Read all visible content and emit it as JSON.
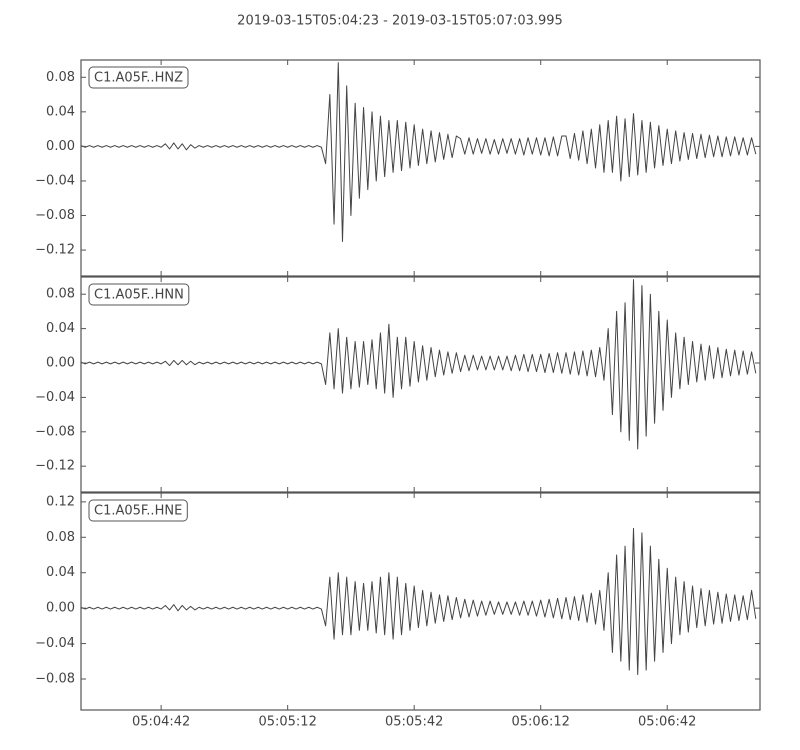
{
  "title": "2019-03-15T05:04:23  -  2019-03-15T05:07:03.995",
  "chart_data": [
    {
      "type": "line",
      "xlim": [
        0,
        160.995
      ],
      "ylim": [
        -0.15,
        0.1
      ],
      "yticks": [
        {
          "value": -0.12,
          "label": "−0.12"
        },
        {
          "value": -0.08,
          "label": "−0.08"
        },
        {
          "value": -0.04,
          "label": "−0.04"
        },
        {
          "value": 0,
          "label": "0.00"
        },
        0.04,
        0.08
      ],
      "x": [
        0,
        1,
        2,
        3,
        4,
        5,
        6,
        7,
        8,
        9,
        10,
        11,
        12,
        13,
        14,
        15,
        16,
        17,
        18,
        19,
        20,
        21,
        22,
        23,
        24,
        25,
        26,
        27,
        28,
        29,
        30,
        31,
        32,
        33,
        34,
        35,
        36,
        37,
        38,
        39,
        40,
        41,
        42,
        43,
        44,
        45,
        46,
        47,
        48,
        49,
        50,
        51,
        52,
        53,
        54,
        55,
        56,
        57,
        58,
        59,
        60,
        61,
        62,
        63,
        64,
        65,
        66,
        67,
        68,
        69,
        70,
        71,
        72,
        73,
        74,
        75,
        76,
        77,
        78,
        79,
        80,
        81,
        82,
        83,
        84,
        85,
        86,
        87,
        88,
        89,
        90,
        91,
        92,
        93,
        94,
        95,
        96,
        97,
        98,
        99,
        100,
        101,
        102,
        103,
        104,
        105,
        106,
        107,
        108,
        109,
        110,
        111,
        112,
        113,
        114,
        115,
        116,
        117,
        118,
        119,
        120,
        121,
        122,
        123,
        124,
        125,
        126,
        127,
        128,
        129,
        130,
        131,
        132,
        133,
        134,
        135,
        136,
        137,
        138,
        139,
        140,
        141,
        142,
        143,
        144,
        145,
        146,
        147,
        148,
        149,
        150,
        151,
        152,
        153,
        154,
        155,
        156,
        157,
        158,
        159,
        160
      ],
      "series": [
        {
          "name": "C1.A05F..HNZ",
          "color": "#444444",
          "values": [
            0.001,
            -0.001,
            0.001,
            -0.001,
            0.001,
            -0.001,
            0.001,
            -0.001,
            0.001,
            -0.001,
            0.001,
            -0.001,
            0.001,
            -0.001,
            0.001,
            -0.001,
            0.001,
            -0.001,
            0.001,
            -0.001,
            0.003,
            -0.003,
            0.004,
            -0.003,
            0.003,
            -0.004,
            0.002,
            -0.002,
            0.001,
            -0.001,
            0.001,
            -0.001,
            0.001,
            -0.001,
            0.001,
            -0.001,
            0.001,
            -0.001,
            0.001,
            -0.001,
            0.001,
            -0.001,
            0.001,
            -0.001,
            0.001,
            -0.001,
            0.001,
            -0.001,
            0.001,
            -0.001,
            0.001,
            -0.001,
            0.001,
            -0.001,
            0.001,
            -0.001,
            0.001,
            -0.001,
            -0.02,
            0.06,
            -0.09,
            0.097,
            -0.11,
            0.07,
            -0.08,
            0.05,
            -0.06,
            0.045,
            -0.05,
            0.04,
            -0.04,
            0.035,
            -0.035,
            0.03,
            -0.03,
            0.03,
            -0.028,
            0.028,
            -0.025,
            0.025,
            -0.022,
            0.02,
            -0.02,
            0.018,
            -0.018,
            0.016,
            -0.015,
            0.014,
            -0.013,
            0.012,
            0.009,
            -0.009,
            0.01,
            -0.009,
            0.009,
            -0.008,
            0.009,
            -0.009,
            0.008,
            -0.009,
            0.009,
            -0.008,
            0.009,
            -0.009,
            0.009,
            -0.01,
            0.01,
            -0.009,
            0.01,
            -0.01,
            0.01,
            -0.011,
            0.011,
            -0.011,
            0.012,
            0.012,
            -0.014,
            0.015,
            -0.016,
            0.018,
            -0.02,
            0.02,
            -0.025,
            0.025,
            -0.03,
            0.03,
            -0.03,
            0.035,
            -0.04,
            0.032,
            -0.035,
            0.038,
            -0.033,
            0.03,
            -0.03,
            0.028,
            -0.025,
            0.024,
            -0.022,
            0.02,
            -0.02,
            0.018,
            -0.017,
            0.016,
            -0.015,
            0.015,
            -0.014,
            0.014,
            -0.013,
            0.013,
            -0.012,
            0.012,
            -0.012,
            0.011,
            -0.011,
            0.011,
            -0.01,
            0.01,
            -0.01,
            0.01,
            -0.009
          ]
        }
      ]
    },
    {
      "type": "line",
      "xlim": [
        0,
        160.995
      ],
      "ylim": [
        -0.15,
        0.1
      ],
      "yticks": [
        {
          "value": -0.12,
          "label": "−0.12"
        },
        {
          "value": -0.08,
          "label": "−0.08"
        },
        {
          "value": -0.04,
          "label": "−0.04"
        },
        {
          "value": 0,
          "label": "0.00"
        },
        0.04,
        0.08
      ],
      "x": [
        0,
        1,
        2,
        3,
        4,
        5,
        6,
        7,
        8,
        9,
        10,
        11,
        12,
        13,
        14,
        15,
        16,
        17,
        18,
        19,
        20,
        21,
        22,
        23,
        24,
        25,
        26,
        27,
        28,
        29,
        30,
        31,
        32,
        33,
        34,
        35,
        36,
        37,
        38,
        39,
        40,
        41,
        42,
        43,
        44,
        45,
        46,
        47,
        48,
        49,
        50,
        51,
        52,
        53,
        54,
        55,
        56,
        57,
        58,
        59,
        60,
        61,
        62,
        63,
        64,
        65,
        66,
        67,
        68,
        69,
        70,
        71,
        72,
        73,
        74,
        75,
        76,
        77,
        78,
        79,
        80,
        81,
        82,
        83,
        84,
        85,
        86,
        87,
        88,
        89,
        90,
        91,
        92,
        93,
        94,
        95,
        96,
        97,
        98,
        99,
        100,
        101,
        102,
        103,
        104,
        105,
        106,
        107,
        108,
        109,
        110,
        111,
        112,
        113,
        114,
        115,
        116,
        117,
        118,
        119,
        120,
        121,
        122,
        123,
        124,
        125,
        126,
        127,
        128,
        129,
        130,
        131,
        132,
        133,
        134,
        135,
        136,
        137,
        138,
        139,
        140,
        141,
        142,
        143,
        144,
        145,
        146,
        147,
        148,
        149,
        150,
        151,
        152,
        153,
        154,
        155,
        156,
        157,
        158,
        159,
        160
      ],
      "series": [
        {
          "name": "C1.A05F..HNN",
          "color": "#444444",
          "values": [
            0.001,
            -0.001,
            0.001,
            -0.001,
            0.001,
            -0.001,
            0.001,
            -0.001,
            0.001,
            -0.001,
            0.001,
            -0.001,
            0.001,
            -0.001,
            0.001,
            -0.001,
            0.001,
            -0.001,
            0.001,
            -0.001,
            0.002,
            -0.003,
            0.003,
            -0.002,
            0.003,
            -0.002,
            0.002,
            -0.002,
            0.001,
            -0.001,
            0.001,
            -0.001,
            0.001,
            -0.001,
            0.001,
            -0.001,
            0.001,
            -0.001,
            0.001,
            -0.001,
            0.001,
            -0.001,
            0.001,
            -0.001,
            0.001,
            -0.001,
            0.001,
            -0.001,
            0.001,
            -0.001,
            0.001,
            -0.001,
            0.001,
            -0.001,
            0.001,
            -0.001,
            0.001,
            -0.001,
            -0.025,
            0.035,
            -0.03,
            0.04,
            -0.035,
            0.03,
            -0.03,
            0.025,
            -0.028,
            0.025,
            -0.025,
            0.027,
            -0.03,
            0.035,
            -0.035,
            0.045,
            -0.04,
            0.03,
            -0.03,
            0.03,
            -0.027,
            0.025,
            -0.022,
            0.02,
            -0.02,
            0.018,
            -0.016,
            0.015,
            -0.014,
            0.013,
            -0.012,
            0.012,
            -0.01,
            0.009,
            -0.009,
            0.009,
            -0.008,
            0.008,
            -0.008,
            0.008,
            -0.008,
            0.008,
            -0.008,
            0.008,
            -0.009,
            0.009,
            -0.009,
            0.01,
            -0.01,
            0.01,
            -0.01,
            0.01,
            -0.011,
            0.011,
            -0.011,
            0.012,
            -0.012,
            0.012,
            -0.013,
            0.013,
            -0.014,
            0.014,
            -0.015,
            0.015,
            -0.016,
            0.018,
            -0.02,
            0.04,
            -0.06,
            0.06,
            -0.08,
            0.07,
            -0.09,
            0.097,
            -0.1,
            0.09,
            -0.085,
            0.08,
            -0.07,
            0.06,
            -0.055,
            0.05,
            -0.04,
            0.035,
            -0.03,
            0.03,
            -0.025,
            0.025,
            -0.022,
            0.022,
            -0.02,
            0.02,
            -0.018,
            0.018,
            -0.017,
            0.016,
            -0.015,
            0.015,
            -0.014,
            0.014,
            -0.013,
            0.013,
            -0.012
          ]
        }
      ]
    },
    {
      "type": "line",
      "xlim": [
        0,
        160.995
      ],
      "ylim": [
        -0.115,
        0.13
      ],
      "yticks": [
        {
          "value": -0.08,
          "label": "−0.08"
        },
        {
          "value": -0.04,
          "label": "−0.04"
        },
        {
          "value": 0,
          "label": "0.00"
        },
        0.04,
        0.08,
        0.12
      ],
      "xticks": [
        {
          "value": 19,
          "label": "05:04:42"
        },
        {
          "value": 49,
          "label": "05:05:12"
        },
        {
          "value": 79,
          "label": "05:05:42"
        },
        {
          "value": 109,
          "label": "05:06:12"
        },
        {
          "value": 139,
          "label": "05:06:42"
        }
      ],
      "x": [
        0,
        1,
        2,
        3,
        4,
        5,
        6,
        7,
        8,
        9,
        10,
        11,
        12,
        13,
        14,
        15,
        16,
        17,
        18,
        19,
        20,
        21,
        22,
        23,
        24,
        25,
        26,
        27,
        28,
        29,
        30,
        31,
        32,
        33,
        34,
        35,
        36,
        37,
        38,
        39,
        40,
        41,
        42,
        43,
        44,
        45,
        46,
        47,
        48,
        49,
        50,
        51,
        52,
        53,
        54,
        55,
        56,
        57,
        58,
        59,
        60,
        61,
        62,
        63,
        64,
        65,
        66,
        67,
        68,
        69,
        70,
        71,
        72,
        73,
        74,
        75,
        76,
        77,
        78,
        79,
        80,
        81,
        82,
        83,
        84,
        85,
        86,
        87,
        88,
        89,
        90,
        91,
        92,
        93,
        94,
        95,
        96,
        97,
        98,
        99,
        100,
        101,
        102,
        103,
        104,
        105,
        106,
        107,
        108,
        109,
        110,
        111,
        112,
        113,
        114,
        115,
        116,
        117,
        118,
        119,
        120,
        121,
        122,
        123,
        124,
        125,
        126,
        127,
        128,
        129,
        130,
        131,
        132,
        133,
        134,
        135,
        136,
        137,
        138,
        139,
        140,
        141,
        142,
        143,
        144,
        145,
        146,
        147,
        148,
        149,
        150,
        151,
        152,
        153,
        154,
        155,
        156,
        157,
        158,
        159,
        160
      ],
      "series": [
        {
          "name": "C1.A05F..HNE",
          "color": "#444444",
          "values": [
            0.001,
            -0.001,
            0.001,
            -0.001,
            0.001,
            -0.001,
            0.001,
            -0.001,
            0.001,
            -0.001,
            0.001,
            -0.001,
            0.001,
            -0.001,
            0.001,
            -0.001,
            0.001,
            -0.001,
            0.001,
            -0.001,
            0.003,
            -0.002,
            0.004,
            -0.003,
            0.003,
            -0.002,
            0.002,
            -0.002,
            0.001,
            -0.001,
            0.001,
            -0.001,
            0.001,
            -0.001,
            0.001,
            -0.001,
            0.001,
            -0.001,
            0.001,
            -0.001,
            0.001,
            -0.001,
            0.001,
            -0.001,
            0.001,
            -0.001,
            0.001,
            -0.001,
            0.001,
            -0.001,
            0.001,
            -0.001,
            0.001,
            -0.001,
            0.001,
            -0.001,
            0.001,
            -0.001,
            -0.02,
            0.035,
            -0.035,
            0.04,
            -0.03,
            0.035,
            -0.03,
            0.03,
            -0.025,
            0.028,
            -0.025,
            0.03,
            -0.028,
            0.035,
            -0.03,
            0.04,
            -0.035,
            0.035,
            -0.03,
            0.028,
            -0.025,
            0.025,
            -0.022,
            0.02,
            -0.02,
            0.018,
            -0.017,
            0.015,
            -0.015,
            0.014,
            -0.013,
            0.012,
            -0.011,
            0.01,
            -0.01,
            0.009,
            -0.009,
            0.008,
            -0.008,
            0.008,
            -0.007,
            0.007,
            -0.007,
            0.007,
            -0.007,
            0.007,
            -0.008,
            0.008,
            -0.008,
            0.008,
            -0.009,
            0.009,
            -0.01,
            0.01,
            -0.011,
            0.011,
            -0.012,
            0.012,
            -0.013,
            0.013,
            -0.014,
            0.015,
            -0.016,
            0.017,
            -0.018,
            0.02,
            -0.025,
            0.04,
            -0.05,
            0.06,
            -0.06,
            0.07,
            -0.07,
            0.09,
            -0.075,
            0.085,
            -0.07,
            0.07,
            -0.06,
            0.055,
            -0.05,
            0.045,
            -0.04,
            0.035,
            -0.03,
            0.03,
            -0.027,
            0.025,
            -0.022,
            0.022,
            -0.02,
            0.02,
            -0.018,
            0.018,
            -0.017,
            0.016,
            -0.015,
            0.015,
            -0.014,
            0.014,
            -0.013,
            0.02,
            -0.012
          ]
        }
      ]
    }
  ]
}
